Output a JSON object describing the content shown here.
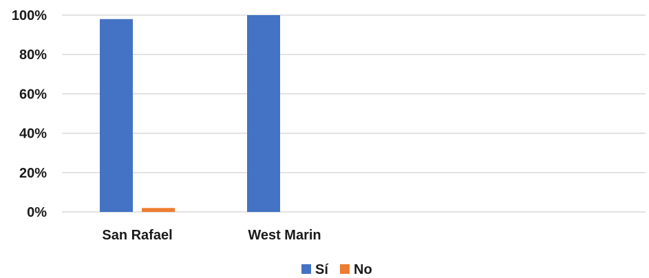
{
  "chart_data": {
    "type": "bar",
    "categories": [
      "San Rafael",
      "West Marin"
    ],
    "series": [
      {
        "name": "Sí",
        "values": [
          98,
          100
        ],
        "color": "#4472C4"
      },
      {
        "name": "No",
        "values": [
          2,
          0
        ],
        "color": "#ED7D31"
      }
    ],
    "ylim": [
      0,
      100
    ],
    "yticks": [
      0,
      20,
      40,
      60,
      80,
      100
    ],
    "ytick_labels": [
      "0%",
      "20%",
      "40%",
      "60%",
      "80%",
      "100%"
    ],
    "grid": true,
    "legend_position": "bottom"
  }
}
